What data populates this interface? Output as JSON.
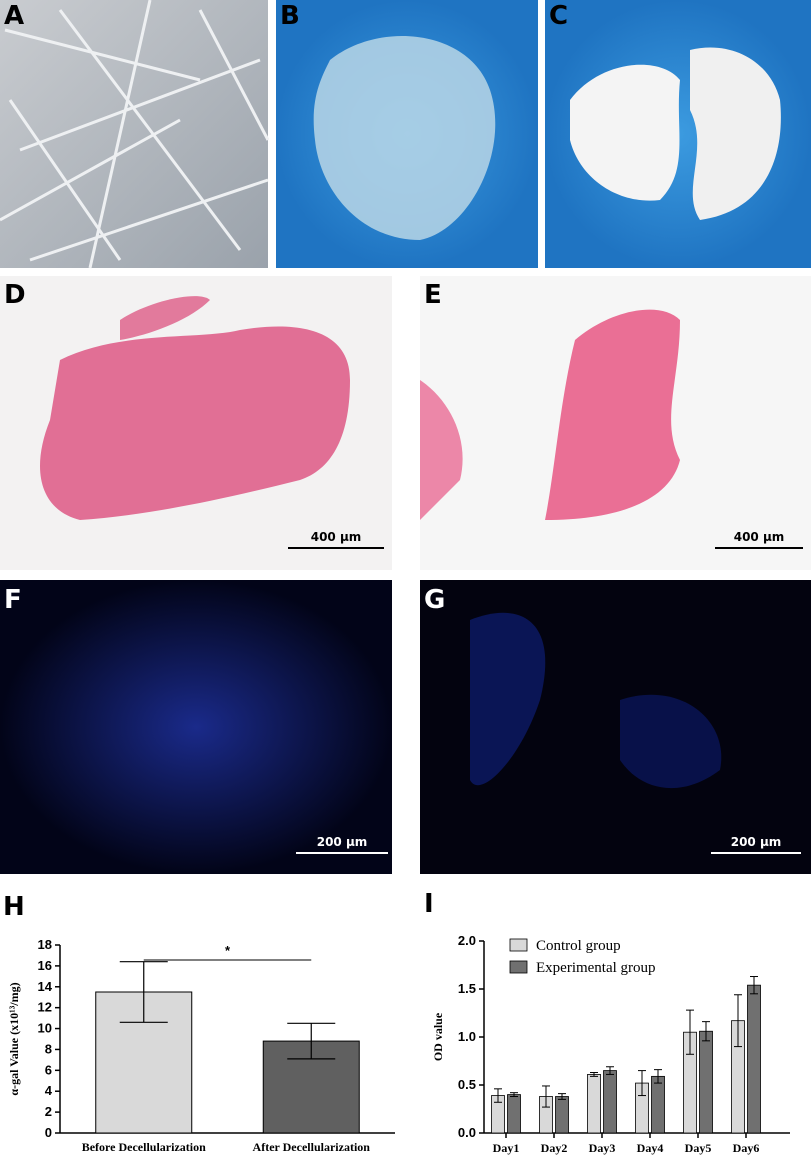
{
  "panels": [
    {
      "label": "A"
    },
    {
      "label": "B"
    },
    {
      "label": "C"
    },
    {
      "label": "D",
      "scale_bar": "400 µm"
    },
    {
      "label": "E",
      "scale_bar": "400 µm"
    },
    {
      "label": "F",
      "scale_bar": "200 µm"
    },
    {
      "label": "G",
      "scale_bar": "200 µm"
    }
  ],
  "chart_data": [
    {
      "type": "bar",
      "panel_label": "H",
      "ylabel": "α-gal Value (x10¹³/mg)",
      "categories": [
        "Before Decellularization",
        "After Decellularization"
      ],
      "values": [
        13.5,
        8.8
      ],
      "errors": [
        2.9,
        1.7
      ],
      "colors": [
        "#d9d9d9",
        "#606060"
      ],
      "ylim": [
        0,
        18
      ],
      "yticks": [
        0,
        2,
        4,
        6,
        8,
        10,
        12,
        14,
        16,
        18
      ],
      "annotation": "*"
    },
    {
      "type": "grouped_bar",
      "panel_label": "I",
      "ylabel": "OD value",
      "categories": [
        "Day1",
        "Day2",
        "Day3",
        "Day4",
        "Day5",
        "Day6"
      ],
      "series": [
        {
          "name": "Control group",
          "color": "#d9d9d9",
          "values": [
            0.39,
            0.38,
            0.61,
            0.52,
            1.05,
            1.17
          ],
          "errors": [
            0.07,
            0.11,
            0.02,
            0.13,
            0.23,
            0.27
          ]
        },
        {
          "name": "Experimental group",
          "color": "#707070",
          "values": [
            0.4,
            0.38,
            0.65,
            0.59,
            1.06,
            1.54
          ],
          "errors": [
            0.02,
            0.03,
            0.04,
            0.07,
            0.1,
            0.09
          ]
        }
      ],
      "ylim": [
        0,
        2.0
      ],
      "yticks": [
        {
          "value": 0,
          "label": "0.0"
        },
        0.5,
        {
          "value": 1,
          "label": "1.0"
        },
        1.5,
        {
          "value": 2,
          "label": "2.0"
        }
      ],
      "legend": "top-left"
    }
  ]
}
